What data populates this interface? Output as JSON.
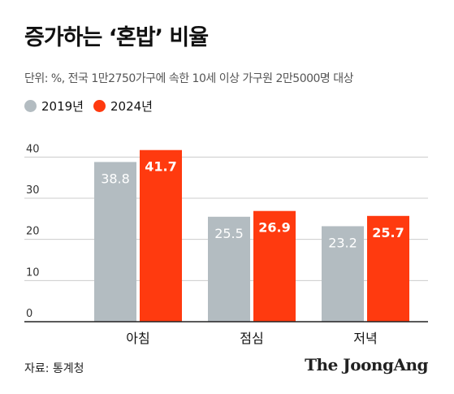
{
  "title": "증가하는 ‘혼밥’ 비율",
  "subtitle": "단위: %, 전국 1만2750가구에 속한 10세 이상 가구원 2만5000명 대상",
  "source": "자료: 통계청",
  "brand": "The JoongAng",
  "colors": {
    "s2019": "#b3bcc1",
    "s2024": "#ff3a0f",
    "axis": "#222222",
    "grid": "#cccccc",
    "label2019": "#ffffff",
    "label2024": "#ffffff"
  },
  "chart_data": {
    "type": "bar",
    "categories": [
      "아침",
      "점심",
      "저녁"
    ],
    "series": [
      {
        "name": "2019년",
        "values": [
          38.8,
          25.5,
          23.2
        ]
      },
      {
        "name": "2024년",
        "values": [
          41.7,
          26.9,
          25.7
        ]
      }
    ],
    "yticks": [
      0,
      10,
      20,
      30,
      40
    ],
    "ylim": [
      0,
      45
    ],
    "grid": true,
    "legend_position": "top-left"
  }
}
